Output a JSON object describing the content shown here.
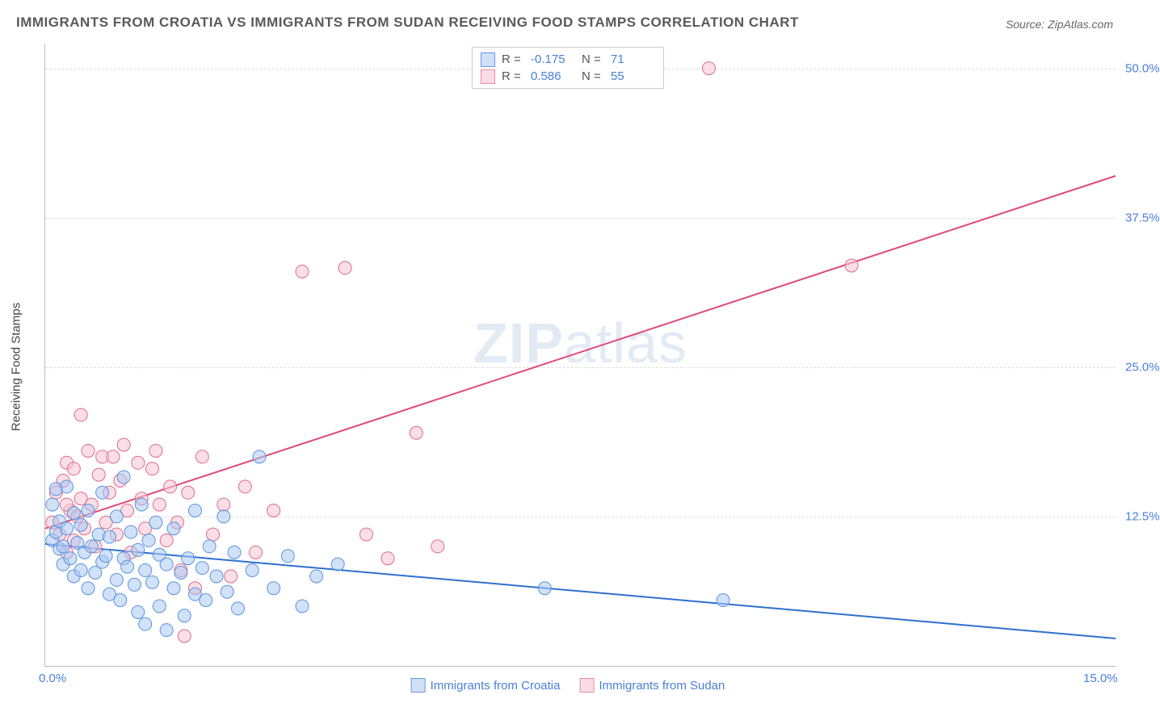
{
  "title": "IMMIGRANTS FROM CROATIA VS IMMIGRANTS FROM SUDAN RECEIVING FOOD STAMPS CORRELATION CHART",
  "source": "Source: ZipAtlas.com",
  "watermark_bold": "ZIP",
  "watermark_rest": "atlas",
  "yaxis_label": "Receiving Food Stamps",
  "chart": {
    "type": "scatter",
    "background_color": "#ffffff",
    "grid_color": "#dddddd",
    "axis_color": "#bbbbbb",
    "xlim": [
      0,
      15
    ],
    "ylim": [
      0,
      52
    ],
    "xticks": [
      {
        "v": 0,
        "l": "0.0%"
      },
      {
        "v": 15,
        "l": "15.0%"
      }
    ],
    "yticks": [
      {
        "v": 12.5,
        "l": "12.5%"
      },
      {
        "v": 25,
        "l": "25.0%"
      },
      {
        "v": 37.5,
        "l": "37.5%"
      },
      {
        "v": 50,
        "l": "50.0%"
      }
    ],
    "series": [
      {
        "name": "Immigrants from Croatia",
        "color_fill": "#a9c9f2",
        "color_stroke": "#5b93de",
        "swatch_fill": "#cfe0f7",
        "swatch_border": "#6a9ae0",
        "marker_r": 8,
        "r_label": "R = ",
        "r_value": "-0.175",
        "n_label": "N = ",
        "n_value": "71",
        "trend": {
          "x1": 0,
          "y1": 10.2,
          "x2": 15,
          "y2": 2.3,
          "color": "#2f6fd0",
          "width": 2
        },
        "points": [
          [
            0.1,
            10.5
          ],
          [
            0.15,
            11.2
          ],
          [
            0.2,
            9.8
          ],
          [
            0.2,
            12.1
          ],
          [
            0.25,
            10.0
          ],
          [
            0.25,
            8.5
          ],
          [
            0.3,
            11.5
          ],
          [
            0.3,
            15.0
          ],
          [
            0.35,
            9.0
          ],
          [
            0.4,
            12.8
          ],
          [
            0.4,
            7.5
          ],
          [
            0.45,
            10.3
          ],
          [
            0.5,
            8.0
          ],
          [
            0.5,
            11.8
          ],
          [
            0.55,
            9.5
          ],
          [
            0.6,
            13.0
          ],
          [
            0.6,
            6.5
          ],
          [
            0.65,
            10.0
          ],
          [
            0.7,
            7.8
          ],
          [
            0.75,
            11.0
          ],
          [
            0.8,
            8.7
          ],
          [
            0.8,
            14.5
          ],
          [
            0.85,
            9.2
          ],
          [
            0.9,
            6.0
          ],
          [
            0.9,
            10.8
          ],
          [
            1.0,
            7.2
          ],
          [
            1.0,
            12.5
          ],
          [
            1.05,
            5.5
          ],
          [
            1.1,
            9.0
          ],
          [
            1.1,
            15.8
          ],
          [
            1.15,
            8.3
          ],
          [
            1.2,
            11.2
          ],
          [
            1.25,
            6.8
          ],
          [
            1.3,
            4.5
          ],
          [
            1.3,
            9.7
          ],
          [
            1.35,
            13.5
          ],
          [
            1.4,
            3.5
          ],
          [
            1.4,
            8.0
          ],
          [
            1.45,
            10.5
          ],
          [
            1.5,
            7.0
          ],
          [
            1.55,
            12.0
          ],
          [
            1.6,
            5.0
          ],
          [
            1.6,
            9.3
          ],
          [
            1.7,
            8.5
          ],
          [
            1.7,
            3.0
          ],
          [
            1.8,
            6.5
          ],
          [
            1.8,
            11.5
          ],
          [
            1.9,
            7.8
          ],
          [
            1.95,
            4.2
          ],
          [
            2.0,
            9.0
          ],
          [
            2.1,
            6.0
          ],
          [
            2.1,
            13.0
          ],
          [
            2.2,
            8.2
          ],
          [
            2.25,
            5.5
          ],
          [
            2.3,
            10.0
          ],
          [
            2.4,
            7.5
          ],
          [
            2.5,
            12.5
          ],
          [
            2.55,
            6.2
          ],
          [
            2.65,
            9.5
          ],
          [
            2.7,
            4.8
          ],
          [
            2.9,
            8.0
          ],
          [
            3.0,
            17.5
          ],
          [
            3.2,
            6.5
          ],
          [
            3.4,
            9.2
          ],
          [
            3.6,
            5.0
          ],
          [
            3.8,
            7.5
          ],
          [
            4.1,
            8.5
          ],
          [
            7.0,
            6.5
          ],
          [
            9.5,
            5.5
          ],
          [
            0.15,
            14.8
          ],
          [
            0.1,
            13.5
          ]
        ]
      },
      {
        "name": "Immigrants from Sudan",
        "color_fill": "#f6c5d4",
        "color_stroke": "#e06a8c",
        "swatch_fill": "#fadce5",
        "swatch_border": "#e58aa6",
        "marker_r": 8,
        "r_label": "R = ",
        "r_value": "0.586",
        "n_label": "N = ",
        "n_value": "55",
        "trend": {
          "x1": 0,
          "y1": 11.5,
          "x2": 15,
          "y2": 41.0,
          "color": "#e04a78",
          "width": 2
        },
        "points": [
          [
            0.1,
            12.0
          ],
          [
            0.15,
            14.5
          ],
          [
            0.2,
            11.0
          ],
          [
            0.25,
            15.5
          ],
          [
            0.3,
            9.5
          ],
          [
            0.3,
            17.0
          ],
          [
            0.35,
            13.0
          ],
          [
            0.4,
            10.5
          ],
          [
            0.4,
            16.5
          ],
          [
            0.45,
            12.5
          ],
          [
            0.5,
            21.0
          ],
          [
            0.5,
            14.0
          ],
          [
            0.55,
            11.5
          ],
          [
            0.6,
            18.0
          ],
          [
            0.65,
            13.5
          ],
          [
            0.7,
            10.0
          ],
          [
            0.75,
            16.0
          ],
          [
            0.8,
            17.5
          ],
          [
            0.85,
            12.0
          ],
          [
            0.9,
            14.5
          ],
          [
            0.95,
            17.5
          ],
          [
            1.0,
            11.0
          ],
          [
            1.05,
            15.5
          ],
          [
            1.1,
            18.5
          ],
          [
            1.15,
            13.0
          ],
          [
            1.2,
            9.5
          ],
          [
            1.3,
            17.0
          ],
          [
            1.35,
            14.0
          ],
          [
            1.4,
            11.5
          ],
          [
            1.5,
            16.5
          ],
          [
            1.55,
            18.0
          ],
          [
            1.6,
            13.5
          ],
          [
            1.7,
            10.5
          ],
          [
            1.75,
            15.0
          ],
          [
            1.85,
            12.0
          ],
          [
            1.9,
            8.0
          ],
          [
            1.95,
            2.5
          ],
          [
            2.0,
            14.5
          ],
          [
            2.1,
            6.5
          ],
          [
            2.2,
            17.5
          ],
          [
            2.35,
            11.0
          ],
          [
            2.5,
            13.5
          ],
          [
            2.6,
            7.5
          ],
          [
            2.8,
            15.0
          ],
          [
            2.95,
            9.5
          ],
          [
            3.2,
            13.0
          ],
          [
            3.6,
            33.0
          ],
          [
            4.2,
            33.3
          ],
          [
            4.5,
            11.0
          ],
          [
            4.8,
            9.0
          ],
          [
            5.2,
            19.5
          ],
          [
            5.5,
            10.0
          ],
          [
            9.3,
            50.0
          ],
          [
            11.3,
            33.5
          ],
          [
            0.3,
            13.5
          ]
        ]
      }
    ]
  },
  "legend_bottom": {
    "items": [
      {
        "label": "Immigrants from Croatia",
        "fill": "#cfe0f7",
        "border": "#6a9ae0"
      },
      {
        "label": "Immigrants from Sudan",
        "fill": "#fadce5",
        "border": "#e58aa6"
      }
    ]
  }
}
